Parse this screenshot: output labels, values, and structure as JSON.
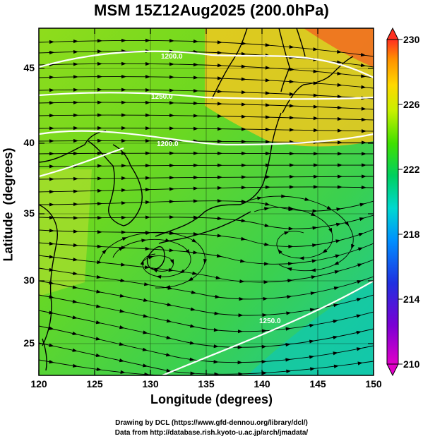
{
  "title": "MSM 15Z12Aug2025 (200.0hPa)",
  "axes": {
    "xlabel": "Longitude (degrees)",
    "ylabel": "Latitude  (degrees)",
    "x_ticks": [
      "120",
      "125",
      "130",
      "135",
      "140",
      "145",
      "150"
    ],
    "y_ticks": [
      "25",
      "30",
      "35",
      "40",
      "45"
    ],
    "lon_range": [
      120,
      150
    ],
    "lat_range": [
      22.5,
      47.5
    ]
  },
  "colorbar": {
    "ticks": [
      "210",
      "214",
      "218",
      "222",
      "226",
      "230"
    ],
    "range": [
      210,
      230
    ],
    "colors": [
      "#e000c8",
      "#4000d0",
      "#0060ff",
      "#00d0e0",
      "#00d060",
      "#40e000",
      "#c0f000",
      "#ffe000",
      "#ffa000",
      "#ff4020"
    ]
  },
  "contours": [
    {
      "label": "1200.0"
    },
    {
      "label": "1250.0"
    },
    {
      "label": "1200.0"
    },
    {
      "label": "1250.0"
    }
  ],
  "credits": {
    "line1": "Drawing by DCL (https://www.gfd-dennou.org/library/dcl/)",
    "line2": "Data from http://database.rish.kyoto-u.ac.jp/arch/jmadata/"
  }
}
